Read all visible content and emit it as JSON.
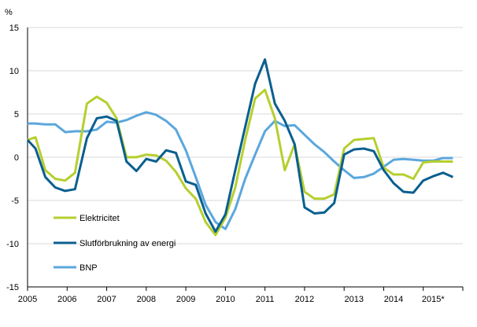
{
  "chart_data": {
    "type": "line",
    "title": "",
    "ylabel": "%",
    "xlabel": "",
    "ylim": [
      -15,
      15
    ],
    "yticks": [
      15,
      10,
      5,
      0,
      -5,
      -10,
      -15
    ],
    "xlim": [
      2005,
      2016
    ],
    "xticks": [
      {
        "label": "2005",
        "at": 2005
      },
      {
        "label": "2006",
        "at": 2006
      },
      {
        "label": "2007",
        "at": 2007
      },
      {
        "label": "2008",
        "at": 2008
      },
      {
        "label": "2009",
        "at": 2009
      },
      {
        "label": "2010",
        "at": 2010
      },
      {
        "label": "2011",
        "at": 2011
      },
      {
        "label": "2012",
        "at": 2012
      },
      {
        "label": "2013",
        "at": 2013.25
      },
      {
        "label": "2014",
        "at": 2014.25
      },
      {
        "label": "2015*",
        "at": 2015.25
      }
    ],
    "gridlines": "horizontal",
    "series": [
      {
        "name": "Elektricitet",
        "color": "#b5cf2f",
        "points": [
          [
            2005.0,
            2.0
          ],
          [
            2005.2,
            2.3
          ],
          [
            2005.45,
            -1.5
          ],
          [
            2005.7,
            -2.5
          ],
          [
            2005.95,
            -2.7
          ],
          [
            2006.2,
            -1.8
          ],
          [
            2006.5,
            6.2
          ],
          [
            2006.75,
            7.0
          ],
          [
            2007.0,
            6.3
          ],
          [
            2007.25,
            4.5
          ],
          [
            2007.5,
            0.0
          ],
          [
            2007.75,
            0.0
          ],
          [
            2008.0,
            0.3
          ],
          [
            2008.25,
            0.2
          ],
          [
            2008.5,
            -0.4
          ],
          [
            2008.75,
            -1.7
          ],
          [
            2009.0,
            -3.6
          ],
          [
            2009.25,
            -4.8
          ],
          [
            2009.5,
            -7.5
          ],
          [
            2009.75,
            -9.0
          ],
          [
            2010.0,
            -7.0
          ],
          [
            2010.25,
            -3.5
          ],
          [
            2010.5,
            2.0
          ],
          [
            2010.75,
            6.8
          ],
          [
            2011.0,
            7.8
          ],
          [
            2011.25,
            4.5
          ],
          [
            2011.5,
            -1.5
          ],
          [
            2011.75,
            1.5
          ],
          [
            2012.0,
            -4.0
          ],
          [
            2012.25,
            -4.8
          ],
          [
            2012.5,
            -4.8
          ],
          [
            2012.75,
            -4.3
          ],
          [
            2013.0,
            1.0
          ],
          [
            2013.25,
            2.0
          ],
          [
            2013.5,
            2.1
          ],
          [
            2013.75,
            2.2
          ],
          [
            2014.0,
            -1.2
          ],
          [
            2014.25,
            -2.0
          ],
          [
            2014.5,
            -2.0
          ],
          [
            2014.75,
            -2.5
          ],
          [
            2015.0,
            -0.6
          ],
          [
            2015.25,
            -0.5
          ],
          [
            2015.5,
            -0.5
          ],
          [
            2015.75,
            -0.5
          ]
        ]
      },
      {
        "name": "Slutförbrukning av energi",
        "color": "#0a5f8f",
        "points": [
          [
            2005.0,
            2.0
          ],
          [
            2005.2,
            1.0
          ],
          [
            2005.45,
            -2.3
          ],
          [
            2005.7,
            -3.5
          ],
          [
            2005.95,
            -3.9
          ],
          [
            2006.2,
            -3.7
          ],
          [
            2006.5,
            2.2
          ],
          [
            2006.75,
            4.5
          ],
          [
            2007.0,
            4.7
          ],
          [
            2007.25,
            4.2
          ],
          [
            2007.5,
            -0.5
          ],
          [
            2007.75,
            -1.6
          ],
          [
            2008.0,
            -0.2
          ],
          [
            2008.25,
            -0.5
          ],
          [
            2008.5,
            0.8
          ],
          [
            2008.75,
            0.5
          ],
          [
            2009.0,
            -2.8
          ],
          [
            2009.25,
            -3.2
          ],
          [
            2009.5,
            -6.5
          ],
          [
            2009.75,
            -8.6
          ],
          [
            2010.0,
            -6.6
          ],
          [
            2010.25,
            -1.5
          ],
          [
            2010.5,
            3.5
          ],
          [
            2010.75,
            8.5
          ],
          [
            2011.0,
            11.3
          ],
          [
            2011.25,
            6.2
          ],
          [
            2011.5,
            4.2
          ],
          [
            2011.75,
            1.5
          ],
          [
            2012.0,
            -5.8
          ],
          [
            2012.25,
            -6.5
          ],
          [
            2012.5,
            -6.4
          ],
          [
            2012.75,
            -5.3
          ],
          [
            2013.0,
            0.3
          ],
          [
            2013.25,
            0.9
          ],
          [
            2013.5,
            1.0
          ],
          [
            2013.75,
            0.7
          ],
          [
            2014.0,
            -1.5
          ],
          [
            2014.25,
            -3.0
          ],
          [
            2014.5,
            -4.0
          ],
          [
            2014.75,
            -4.1
          ],
          [
            2015.0,
            -2.7
          ],
          [
            2015.25,
            -2.2
          ],
          [
            2015.5,
            -1.8
          ],
          [
            2015.75,
            -2.3
          ]
        ]
      },
      {
        "name": "BNP",
        "color": "#5ba7dd",
        "points": [
          [
            2005.0,
            3.9
          ],
          [
            2005.2,
            3.9
          ],
          [
            2005.45,
            3.8
          ],
          [
            2005.7,
            3.8
          ],
          [
            2005.95,
            2.9
          ],
          [
            2006.2,
            3.0
          ],
          [
            2006.5,
            3.0
          ],
          [
            2006.75,
            3.2
          ],
          [
            2007.0,
            4.1
          ],
          [
            2007.25,
            4.0
          ],
          [
            2007.5,
            4.3
          ],
          [
            2007.75,
            4.8
          ],
          [
            2008.0,
            5.2
          ],
          [
            2008.25,
            4.9
          ],
          [
            2008.5,
            4.2
          ],
          [
            2008.75,
            3.2
          ],
          [
            2009.0,
            0.8
          ],
          [
            2009.25,
            -2.3
          ],
          [
            2009.5,
            -5.5
          ],
          [
            2009.75,
            -7.5
          ],
          [
            2010.0,
            -8.3
          ],
          [
            2010.25,
            -6.0
          ],
          [
            2010.5,
            -2.5
          ],
          [
            2010.75,
            0.3
          ],
          [
            2011.0,
            3.0
          ],
          [
            2011.25,
            4.2
          ],
          [
            2011.5,
            3.6
          ],
          [
            2011.75,
            3.7
          ],
          [
            2012.0,
            2.6
          ],
          [
            2012.25,
            1.5
          ],
          [
            2012.5,
            0.6
          ],
          [
            2012.75,
            -0.5
          ],
          [
            2013.0,
            -1.5
          ],
          [
            2013.25,
            -2.4
          ],
          [
            2013.5,
            -2.3
          ],
          [
            2013.75,
            -1.9
          ],
          [
            2014.0,
            -1.1
          ],
          [
            2014.25,
            -0.3
          ],
          [
            2014.5,
            -0.2
          ],
          [
            2014.75,
            -0.3
          ],
          [
            2015.0,
            -0.4
          ],
          [
            2015.25,
            -0.4
          ],
          [
            2015.5,
            -0.1
          ],
          [
            2015.75,
            -0.1
          ]
        ]
      }
    ]
  }
}
